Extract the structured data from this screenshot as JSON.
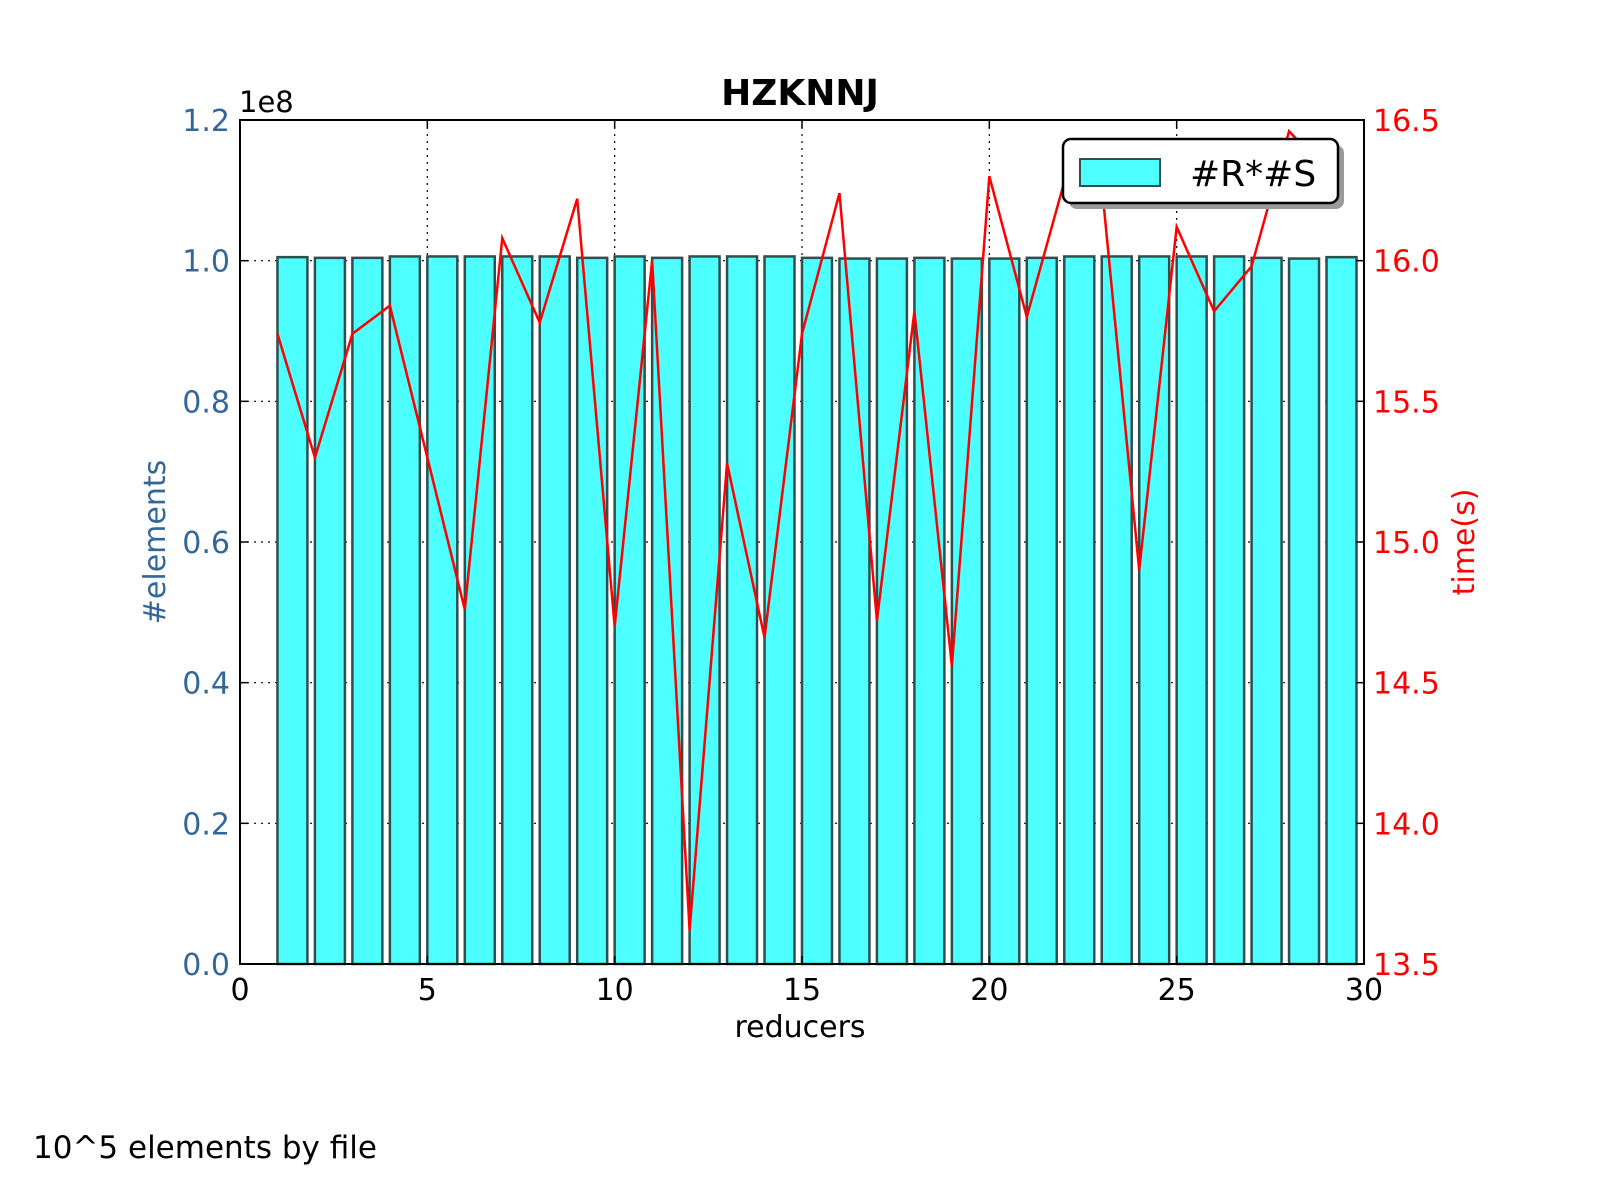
{
  "chart_data": {
    "type": "bar",
    "title": "HZKNNJ",
    "xlabel": "reducers",
    "ylabel": "#elements",
    "y2label": "time(s)",
    "y_offset_label": "1e8",
    "xlim": [
      0,
      30
    ],
    "ylim": [
      0,
      1.2
    ],
    "y2lim": [
      13.5,
      16.5
    ],
    "xticks": [
      "0",
      "5",
      "10",
      "15",
      "20",
      "25",
      "30"
    ],
    "yticks": [
      "0.0",
      "0.2",
      "0.4",
      "0.6",
      "0.8",
      "1.0",
      "1.2"
    ],
    "y2ticks": [
      "13.5",
      "14.0",
      "14.5",
      "15.0",
      "15.5",
      "16.0",
      "16.5"
    ],
    "grid": true,
    "legend_position": "top-right",
    "colors": {
      "bar": "#4dffff",
      "bar_edge": "#2f4f4f",
      "line": "#ff0000",
      "left_axis": "#336699",
      "right_axis": "#ff0000"
    },
    "series": [
      {
        "name": "#R*#S",
        "type": "bar",
        "axis": "left",
        "x": [
          1,
          2,
          3,
          4,
          5,
          6,
          7,
          8,
          9,
          10,
          11,
          12,
          13,
          14,
          15,
          16,
          17,
          18,
          19,
          20,
          21,
          22,
          23,
          24,
          25,
          26,
          27,
          28,
          29
        ],
        "values": [
          1.005,
          1.004,
          1.004,
          1.006,
          1.006,
          1.006,
          1.006,
          1.006,
          1.004,
          1.006,
          1.004,
          1.006,
          1.006,
          1.006,
          1.004,
          1.003,
          1.003,
          1.004,
          1.003,
          1.003,
          1.004,
          1.006,
          1.006,
          1.006,
          1.006,
          1.006,
          1.004,
          1.003,
          1.005
        ]
      },
      {
        "type": "line",
        "axis": "right",
        "x": [
          1,
          2,
          3,
          4,
          5,
          6,
          7,
          8,
          9,
          10,
          11,
          12,
          13,
          14,
          15,
          16,
          17,
          18,
          19,
          20,
          21,
          22,
          23,
          24,
          25,
          26,
          27,
          28,
          29
        ],
        "values": [
          15.74,
          15.3,
          15.74,
          15.84,
          15.3,
          14.76,
          16.08,
          15.78,
          16.22,
          14.7,
          16.0,
          13.62,
          15.28,
          14.66,
          15.74,
          16.24,
          14.72,
          15.82,
          14.56,
          16.3,
          15.8,
          16.28,
          16.27,
          14.9,
          16.12,
          15.82,
          15.98,
          16.46,
          16.32
        ]
      }
    ]
  },
  "footnote": "10^5 elements by file"
}
